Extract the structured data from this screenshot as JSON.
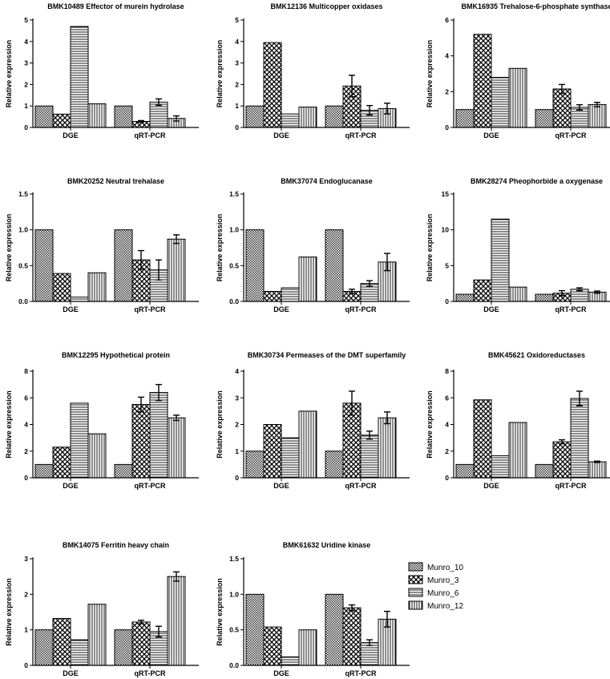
{
  "legend": [
    "Munro_10",
    "Munro_3",
    "Munro_6",
    "Munro_12"
  ],
  "chart_data": [
    {
      "type": "bar",
      "title": "BMK10489 Effector of murein hydrolase",
      "ylabel": "Relative expression",
      "categories": [
        "DGE",
        "qRT-PCR"
      ],
      "ylim": [
        0,
        5
      ],
      "yticks": [
        "0",
        "1",
        "2",
        "3",
        "4",
        "5"
      ],
      "series": [
        {
          "name": "Munro_10",
          "values": [
            1.0,
            1.0
          ],
          "errors": [
            0,
            0
          ]
        },
        {
          "name": "Munro_3",
          "values": [
            0.62,
            0.28
          ],
          "errors": [
            0,
            0.04
          ]
        },
        {
          "name": "Munro_6",
          "values": [
            4.7,
            1.18
          ],
          "errors": [
            0,
            0.15
          ]
        },
        {
          "name": "Munro_12",
          "values": [
            1.1,
            0.42
          ],
          "errors": [
            0,
            0.12
          ]
        }
      ]
    },
    {
      "type": "bar",
      "title": "BMK12136 Multicopper oxidases",
      "ylabel": "Relative expression",
      "categories": [
        "DGE",
        "qRT-PCR"
      ],
      "ylim": [
        0,
        5
      ],
      "yticks": [
        "0",
        "1",
        "2",
        "3",
        "4",
        "5"
      ],
      "series": [
        {
          "name": "Munro_10",
          "values": [
            1.0,
            1.0
          ],
          "errors": [
            0,
            0
          ]
        },
        {
          "name": "Munro_3",
          "values": [
            3.95,
            1.93
          ],
          "errors": [
            0,
            0.5
          ]
        },
        {
          "name": "Munro_6",
          "values": [
            0.63,
            0.8
          ],
          "errors": [
            0,
            0.22
          ]
        },
        {
          "name": "Munro_12",
          "values": [
            0.95,
            0.88
          ],
          "errors": [
            0,
            0.25
          ]
        }
      ]
    },
    {
      "type": "bar",
      "title": "BMK16935 Trehalose-6-phosphate synthase",
      "ylabel": "Relative expression",
      "categories": [
        "DGE",
        "qRT-PCR"
      ],
      "ylim": [
        0,
        6
      ],
      "yticks": [
        "0",
        "2",
        "4",
        "6"
      ],
      "series": [
        {
          "name": "Munro_10",
          "values": [
            1.0,
            1.0
          ],
          "errors": [
            0,
            0
          ]
        },
        {
          "name": "Munro_3",
          "values": [
            5.2,
            2.15
          ],
          "errors": [
            0,
            0.25
          ]
        },
        {
          "name": "Munro_6",
          "values": [
            2.8,
            1.12
          ],
          "errors": [
            0,
            0.15
          ]
        },
        {
          "name": "Munro_12",
          "values": [
            3.3,
            1.28
          ],
          "errors": [
            0,
            0.12
          ]
        }
      ]
    },
    {
      "type": "bar",
      "title": "BMK20252 Neutral trehalase",
      "ylabel": "Relative expression",
      "categories": [
        "DGE",
        "qRT-PCR"
      ],
      "ylim": [
        0,
        1.5
      ],
      "yticks": [
        "0.0",
        "0.5",
        "1.0",
        "1.5"
      ],
      "series": [
        {
          "name": "Munro_10",
          "values": [
            1.0,
            1.0
          ],
          "errors": [
            0,
            0
          ]
        },
        {
          "name": "Munro_3",
          "values": [
            0.39,
            0.58
          ],
          "errors": [
            0,
            0.13
          ]
        },
        {
          "name": "Munro_6",
          "values": [
            0.06,
            0.44
          ],
          "errors": [
            0,
            0.14
          ]
        },
        {
          "name": "Munro_12",
          "values": [
            0.4,
            0.87
          ],
          "errors": [
            0,
            0.06
          ]
        }
      ]
    },
    {
      "type": "bar",
      "title": "BMK37074 Endoglucanase",
      "ylabel": "Relative expression",
      "categories": [
        "DGE",
        "qRT-PCR"
      ],
      "ylim": [
        0,
        1.5
      ],
      "yticks": [
        "0.0",
        "0.5",
        "1.0",
        "1.5"
      ],
      "series": [
        {
          "name": "Munro_10",
          "values": [
            1.0,
            1.0
          ],
          "errors": [
            0,
            0
          ]
        },
        {
          "name": "Munro_3",
          "values": [
            0.14,
            0.14
          ],
          "errors": [
            0,
            0.03
          ]
        },
        {
          "name": "Munro_6",
          "values": [
            0.19,
            0.25
          ],
          "errors": [
            0,
            0.04
          ]
        },
        {
          "name": "Munro_12",
          "values": [
            0.62,
            0.55
          ],
          "errors": [
            0,
            0.12
          ]
        }
      ]
    },
    {
      "type": "bar",
      "title": "BMK28274 Pheophorbide a oxygenase",
      "ylabel": "Relative expression",
      "categories": [
        "DGE",
        "qRT-PCR"
      ],
      "ylim": [
        0,
        15
      ],
      "yticks": [
        "0",
        "5",
        "10",
        "15"
      ],
      "series": [
        {
          "name": "Munro_10",
          "values": [
            1.0,
            1.0
          ],
          "errors": [
            0,
            0
          ]
        },
        {
          "name": "Munro_3",
          "values": [
            3.0,
            1.15
          ],
          "errors": [
            0,
            0.35
          ]
        },
        {
          "name": "Munro_6",
          "values": [
            11.5,
            1.7
          ],
          "errors": [
            0,
            0.2
          ]
        },
        {
          "name": "Munro_12",
          "values": [
            2.0,
            1.3
          ],
          "errors": [
            0,
            0.15
          ]
        }
      ]
    },
    {
      "type": "bar",
      "title": "BMK12295 Hypothetical protein",
      "ylabel": "Relative expression",
      "categories": [
        "DGE",
        "qRT-PCR"
      ],
      "ylim": [
        0,
        8
      ],
      "yticks": [
        "0",
        "2",
        "4",
        "6",
        "8"
      ],
      "series": [
        {
          "name": "Munro_10",
          "values": [
            1.0,
            1.0
          ],
          "errors": [
            0,
            0
          ]
        },
        {
          "name": "Munro_3",
          "values": [
            2.3,
            5.5
          ],
          "errors": [
            0,
            0.55
          ]
        },
        {
          "name": "Munro_6",
          "values": [
            5.6,
            6.4
          ],
          "errors": [
            0,
            0.6
          ]
        },
        {
          "name": "Munro_12",
          "values": [
            3.3,
            4.5
          ],
          "errors": [
            0,
            0.2
          ]
        }
      ]
    },
    {
      "type": "bar",
      "title": "BMK30734 Permeases of the DMT superfamily",
      "ylabel": "Relative expression",
      "categories": [
        "DGE",
        "qRT-PCR"
      ],
      "ylim": [
        0,
        4
      ],
      "yticks": [
        "0",
        "1",
        "2",
        "3",
        "4"
      ],
      "series": [
        {
          "name": "Munro_10",
          "values": [
            1.0,
            1.0
          ],
          "errors": [
            0,
            0
          ]
        },
        {
          "name": "Munro_3",
          "values": [
            2.0,
            2.8
          ],
          "errors": [
            0,
            0.45
          ]
        },
        {
          "name": "Munro_6",
          "values": [
            1.5,
            1.6
          ],
          "errors": [
            0,
            0.15
          ]
        },
        {
          "name": "Munro_12",
          "values": [
            2.5,
            2.25
          ],
          "errors": [
            0,
            0.22
          ]
        }
      ]
    },
    {
      "type": "bar",
      "title": "BMK45621 Oxidoreductases",
      "ylabel": "Relative expression",
      "categories": [
        "DGE",
        "qRT-PCR"
      ],
      "ylim": [
        0,
        8
      ],
      "yticks": [
        "0",
        "2",
        "4",
        "6",
        "8"
      ],
      "series": [
        {
          "name": "Munro_10",
          "values": [
            1.0,
            1.0
          ],
          "errors": [
            0,
            0
          ]
        },
        {
          "name": "Munro_3",
          "values": [
            5.85,
            2.7
          ],
          "errors": [
            0,
            0.15
          ]
        },
        {
          "name": "Munro_6",
          "values": [
            1.65,
            5.95
          ],
          "errors": [
            0,
            0.55
          ]
        },
        {
          "name": "Munro_12",
          "values": [
            4.15,
            1.2
          ],
          "errors": [
            0,
            0.05
          ]
        }
      ]
    },
    {
      "type": "bar",
      "title": "BMK14075 Ferritin heavy chain",
      "ylabel": "Relative expression",
      "categories": [
        "DGE",
        "qRT-PCR"
      ],
      "ylim": [
        0,
        3
      ],
      "yticks": [
        "0",
        "1",
        "2",
        "3"
      ],
      "series": [
        {
          "name": "Munro_10",
          "values": [
            1.0,
            1.0
          ],
          "errors": [
            0,
            0
          ]
        },
        {
          "name": "Munro_3",
          "values": [
            1.32,
            1.22
          ],
          "errors": [
            0,
            0.05
          ]
        },
        {
          "name": "Munro_6",
          "values": [
            0.72,
            0.95
          ],
          "errors": [
            0,
            0.15
          ]
        },
        {
          "name": "Munro_12",
          "values": [
            1.72,
            2.5
          ],
          "errors": [
            0,
            0.13
          ]
        }
      ]
    },
    {
      "type": "bar",
      "title": "BMK61632 Uridine kinase",
      "ylabel": "Relative expression",
      "categories": [
        "DGE",
        "qRT-PCR"
      ],
      "ylim": [
        0,
        1.5
      ],
      "yticks": [
        "0.0",
        "0.5",
        "1.0",
        "1.5"
      ],
      "series": [
        {
          "name": "Munro_10",
          "values": [
            1.0,
            1.0
          ],
          "errors": [
            0,
            0
          ]
        },
        {
          "name": "Munro_3",
          "values": [
            0.54,
            0.81
          ],
          "errors": [
            0,
            0.04
          ]
        },
        {
          "name": "Munro_6",
          "values": [
            0.12,
            0.32
          ],
          "errors": [
            0,
            0.04
          ]
        },
        {
          "name": "Munro_12",
          "values": [
            0.5,
            0.65
          ],
          "errors": [
            0,
            0.11
          ]
        }
      ]
    }
  ]
}
